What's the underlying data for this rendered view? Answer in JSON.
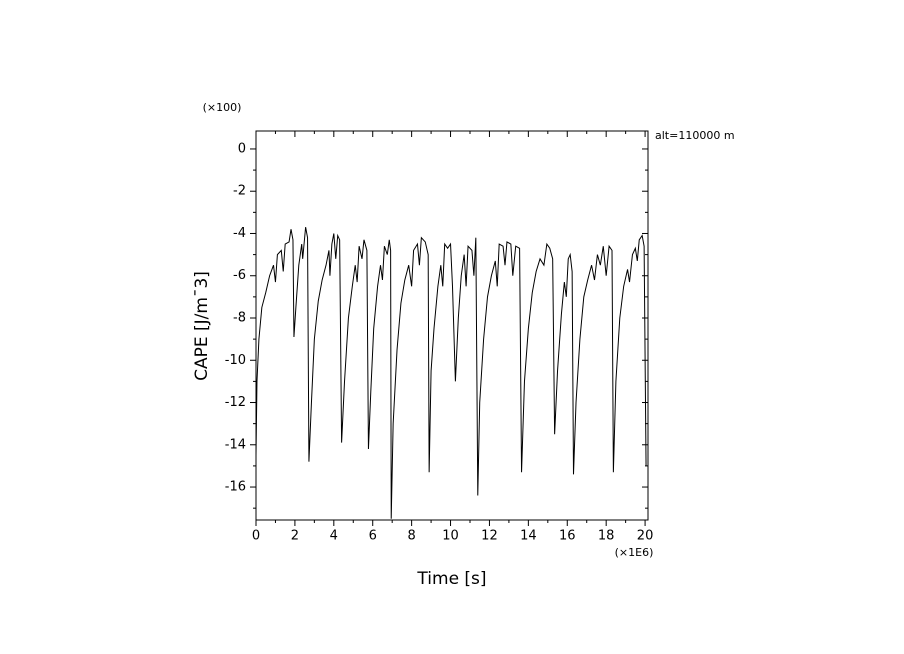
{
  "chart_data": {
    "type": "line",
    "corner_note": "alt=110000 m",
    "x_label": "Time [s]",
    "x_scale_note": "(×1E6)",
    "y_label": "CAPE [J/m¯3]",
    "y_scale_note": "(×100)",
    "color": "#000000",
    "xlim": [
      0,
      20.15
    ],
    "ylim": [
      -17.56,
      0.85
    ],
    "xticks": [
      0,
      2,
      4,
      6,
      8,
      10,
      12,
      14,
      16,
      18,
      20
    ],
    "yticks": [
      0,
      -2,
      -4,
      -6,
      -8,
      -10,
      -12,
      -14,
      -16
    ],
    "x_minor_ticks": [
      1,
      3,
      5,
      7,
      9,
      11,
      13,
      15,
      17,
      19
    ],
    "y_minor_ticks": [
      -1,
      -3,
      -5,
      -7,
      -9,
      -11,
      -13,
      -15,
      -17
    ],
    "x": [
      0,
      0.05,
      0.15,
      0.3,
      0.5,
      0.7,
      0.9,
      1.0,
      1.1,
      1.3,
      1.4,
      1.5,
      1.7,
      1.8,
      1.9,
      1.95,
      2.05,
      2.2,
      2.35,
      2.4,
      2.55,
      2.65,
      2.72,
      2.85,
      3.0,
      3.2,
      3.4,
      3.6,
      3.75,
      3.8,
      3.9,
      4.0,
      4.1,
      4.2,
      4.3,
      4.4,
      4.55,
      4.75,
      4.95,
      5.1,
      5.2,
      5.3,
      5.45,
      5.55,
      5.7,
      5.78,
      5.9,
      6.05,
      6.25,
      6.4,
      6.5,
      6.6,
      6.75,
      6.85,
      6.92,
      6.95,
      7.05,
      7.25,
      7.45,
      7.65,
      7.85,
      8.0,
      8.1,
      8.3,
      8.4,
      8.5,
      8.7,
      8.85,
      8.9,
      9.0,
      9.15,
      9.35,
      9.5,
      9.6,
      9.7,
      9.85,
      10.0,
      10.1,
      10.25,
      10.4,
      10.55,
      10.7,
      10.8,
      10.9,
      11.1,
      11.2,
      11.3,
      11.4,
      11.5,
      11.7,
      11.9,
      12.1,
      12.3,
      12.4,
      12.5,
      12.7,
      12.8,
      12.9,
      13.1,
      13.2,
      13.35,
      13.55,
      13.65,
      13.8,
      14.0,
      14.2,
      14.4,
      14.6,
      14.8,
      14.95,
      15.1,
      15.25,
      15.35,
      15.5,
      15.7,
      15.85,
      15.95,
      16.05,
      16.15,
      16.25,
      16.32,
      16.45,
      16.65,
      16.85,
      17.05,
      17.25,
      17.4,
      17.55,
      17.7,
      17.85,
      18.0,
      18.15,
      18.3,
      18.37,
      18.5,
      18.7,
      18.9,
      19.1,
      19.2,
      19.35,
      19.5,
      19.6,
      19.7,
      19.85,
      19.95,
      20.05
    ],
    "values": [
      -14.5,
      -11,
      -9,
      -7.5,
      -6.8,
      -6,
      -5.5,
      -6.3,
      -5,
      -4.8,
      -5.8,
      -4.5,
      -4.4,
      -3.8,
      -4.3,
      -8.9,
      -7.5,
      -5.5,
      -4.5,
      -5.2,
      -3.7,
      -4.2,
      -14.8,
      -12,
      -9,
      -7.2,
      -6.2,
      -5.5,
      -4.8,
      -6,
      -4.5,
      -4,
      -5.2,
      -4.1,
      -4.3,
      -13.9,
      -11,
      -8,
      -6.5,
      -5.5,
      -6.3,
      -4.6,
      -5.2,
      -4.3,
      -4.8,
      -14.2,
      -11.5,
      -8.5,
      -6.5,
      -5.5,
      -6.2,
      -4.6,
      -5,
      -4.3,
      -4.8,
      -17.5,
      -13,
      -9.5,
      -7.3,
      -6.2,
      -5.5,
      -6.5,
      -4.8,
      -4.5,
      -5.5,
      -4.2,
      -4.4,
      -5,
      -15.3,
      -10.5,
      -8.5,
      -6.5,
      -5.5,
      -6.5,
      -4.5,
      -4.7,
      -4.5,
      -6.5,
      -11,
      -8,
      -6,
      -5,
      -6.5,
      -4.6,
      -4.8,
      -6,
      -4.2,
      -16.4,
      -12,
      -9,
      -7,
      -6,
      -5.3,
      -6.5,
      -4.5,
      -4.6,
      -5.5,
      -4.4,
      -4.5,
      -6,
      -4.6,
      -4.7,
      -15.3,
      -11,
      -8.5,
      -6.8,
      -5.8,
      -5.2,
      -5.5,
      -4.5,
      -4.7,
      -5.2,
      -13.5,
      -10.5,
      -7.8,
      -6.3,
      -7,
      -5.2,
      -5,
      -5.8,
      -15.4,
      -12,
      -9,
      -7,
      -6.2,
      -5.5,
      -6.2,
      -5,
      -5.5,
      -4.6,
      -6,
      -4.6,
      -4.8,
      -15.3,
      -11,
      -8,
      -6.5,
      -5.7,
      -6.3,
      -5,
      -4.7,
      -5.3,
      -4.3,
      -4.1,
      -4.6,
      -15
    ]
  }
}
